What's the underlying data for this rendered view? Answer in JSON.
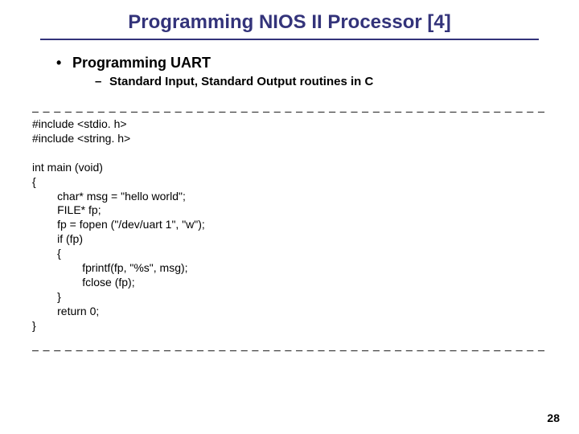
{
  "slide": {
    "title": "Programming NIOS II Processor [4]",
    "title_color": "#33337a",
    "title_fontsize": 24,
    "underline_color": "#33337a",
    "bullet": {
      "text": "Programming UART",
      "fontsize": 18,
      "color": "#000000"
    },
    "sub_bullet": {
      "text": "Standard Input, Standard Output routines in C",
      "fontsize": 15,
      "color": "#000000"
    },
    "dashes_top": "_ _ _ _ _ _ _ _ _ _ _ _ _ _ _ _ _ _ _ _ _ _ _ _ _ _ _ _ _ _ _ _ _ _ _ _ _ _ _ _ _ _ _ _ _ _ _ _ _",
    "code_lines": "#include <stdio. h>\n#include <string. h>\n\nint main (void)\n{\n        char* msg = \"hello world\";\n        FILE* fp;\n        fp = fopen (\"/dev/uart 1\", \"w\");\n        if (fp)\n        {\n                fprintf(fp, \"%s\", msg);\n                fclose (fp);\n        }\n        return 0;\n}",
    "code_fontsize": 14,
    "code_color": "#000000",
    "dashes_bottom": "_ _ _ _ _ _ _ _ _ _ _ _ _ _ _ _ _ _ _ _ _ _ _ _ _ _ _ _ _ _ _ _ _ _ _ _ _ _ _ _ _ _ _ _ _ _ _ _ _",
    "page_number": "28",
    "page_number_fontsize": 14,
    "page_number_color": "#000000",
    "background_color": "#ffffff"
  }
}
